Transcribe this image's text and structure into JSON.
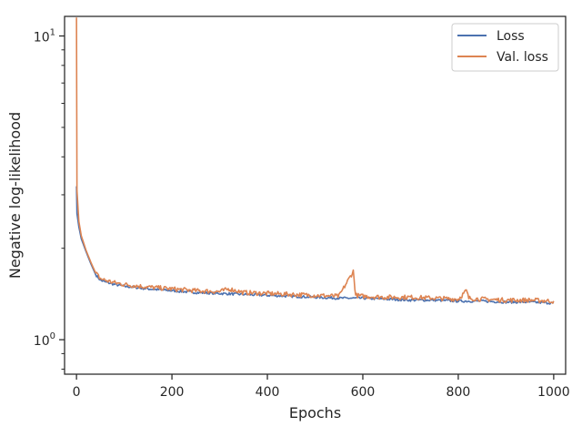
{
  "chart_data": {
    "type": "line",
    "xlabel": "Epochs",
    "ylabel": "Negative log-likelihood",
    "xlim": [
      -25,
      1025
    ],
    "ylim": [
      0.77,
      11.6
    ],
    "yscale": "log",
    "x_ticks": [
      0,
      200,
      400,
      600,
      800,
      1000
    ],
    "y_ticks": [
      {
        "value": 1,
        "label": "10",
        "exp": "0"
      },
      {
        "value": 10,
        "label": "10",
        "exp": "1"
      }
    ],
    "grid": false,
    "legend": "top-right",
    "series": [
      {
        "name": "Loss",
        "color": "#4c72b0",
        "points": [
          [
            0,
            3.2
          ],
          [
            1,
            2.6
          ],
          [
            5,
            2.35
          ],
          [
            10,
            2.15
          ],
          [
            20,
            1.95
          ],
          [
            30,
            1.78
          ],
          [
            40,
            1.64
          ],
          [
            50,
            1.57
          ],
          [
            60,
            1.55
          ],
          [
            80,
            1.52
          ],
          [
            100,
            1.5
          ],
          [
            150,
            1.47
          ],
          [
            200,
            1.45
          ],
          [
            250,
            1.43
          ],
          [
            300,
            1.42
          ],
          [
            350,
            1.41
          ],
          [
            400,
            1.4
          ],
          [
            450,
            1.39
          ],
          [
            500,
            1.38
          ],
          [
            550,
            1.37
          ],
          [
            600,
            1.37
          ],
          [
            650,
            1.36
          ],
          [
            700,
            1.35
          ],
          [
            750,
            1.35
          ],
          [
            800,
            1.34
          ],
          [
            850,
            1.34
          ],
          [
            900,
            1.33
          ],
          [
            950,
            1.33
          ],
          [
            1000,
            1.32
          ]
        ]
      },
      {
        "name": "Val. loss",
        "color": "#dd8452",
        "points": [
          [
            0,
            11.5
          ],
          [
            1,
            3.1
          ],
          [
            5,
            2.45
          ],
          [
            10,
            2.2
          ],
          [
            20,
            1.97
          ],
          [
            30,
            1.8
          ],
          [
            40,
            1.66
          ],
          [
            50,
            1.59
          ],
          [
            60,
            1.57
          ],
          [
            80,
            1.54
          ],
          [
            100,
            1.52
          ],
          [
            150,
            1.49
          ],
          [
            200,
            1.47
          ],
          [
            250,
            1.45
          ],
          [
            300,
            1.44
          ],
          [
            320,
            1.47
          ],
          [
            350,
            1.43
          ],
          [
            400,
            1.42
          ],
          [
            450,
            1.41
          ],
          [
            500,
            1.4
          ],
          [
            550,
            1.39
          ],
          [
            580,
            1.68
          ],
          [
            585,
            1.4
          ],
          [
            600,
            1.39
          ],
          [
            650,
            1.38
          ],
          [
            700,
            1.38
          ],
          [
            750,
            1.37
          ],
          [
            800,
            1.36
          ],
          [
            817,
            1.45
          ],
          [
            822,
            1.37
          ],
          [
            850,
            1.36
          ],
          [
            900,
            1.35
          ],
          [
            950,
            1.35
          ],
          [
            1000,
            1.34
          ]
        ]
      }
    ]
  }
}
